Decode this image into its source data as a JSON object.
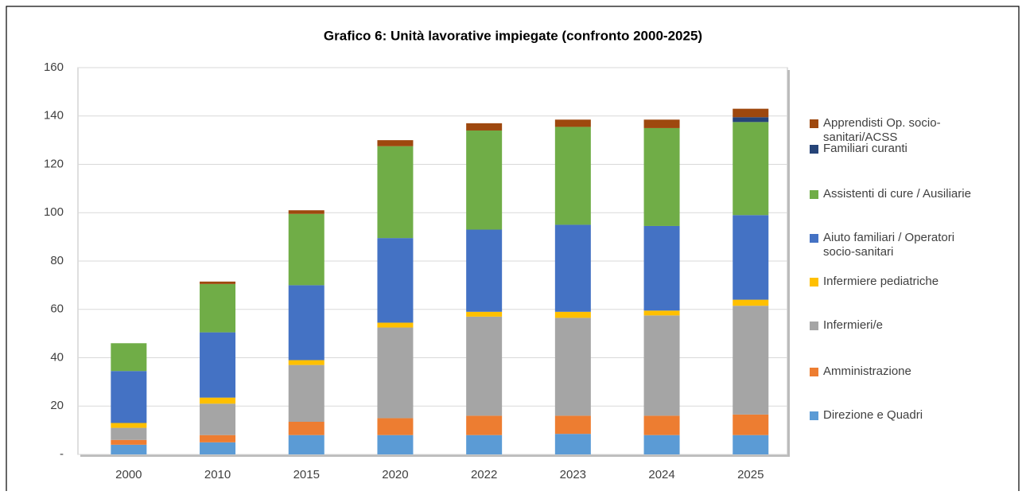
{
  "chart_data": {
    "type": "stacked_bar",
    "title": "Grafico 6:  Unità lavorative impiegate (confronto 2000-2025)",
    "categories": [
      "2000",
      "2010",
      "2015",
      "2020",
      "2022",
      "2023",
      "2024",
      "2025"
    ],
    "series": [
      {
        "name": "Direzione e Quadri",
        "color": "#5b9bd5",
        "values": [
          4,
          5,
          8,
          8,
          8,
          8.5,
          8,
          8
        ]
      },
      {
        "name": "Amministrazione",
        "color": "#ed7d31",
        "values": [
          2,
          3,
          5.5,
          7,
          8,
          7.5,
          8,
          8.5
        ]
      },
      {
        "name": "Infermieri/e",
        "color": "#a5a5a5",
        "values": [
          5,
          13,
          23.5,
          37.5,
          41,
          40.5,
          41.5,
          45
        ]
      },
      {
        "name": "Infermiere pediatriche",
        "color": "#ffc000",
        "values": [
          2,
          2.5,
          2,
          2,
          2,
          2.5,
          2,
          2.5
        ]
      },
      {
        "name": "Aiuto familiari / Operatori socio-sanitari",
        "color": "#4472c4",
        "values": [
          21.5,
          27,
          31,
          35,
          34,
          36,
          35,
          35
        ]
      },
      {
        "name": "Assistenti di cure / Ausiliarie",
        "color": "#70ad47",
        "values": [
          11.5,
          20,
          29.5,
          38,
          41,
          40.5,
          40.5,
          38.5
        ]
      },
      {
        "name": "Familiari curanti",
        "color": "#264478",
        "values": [
          0,
          0,
          0,
          0,
          0,
          0,
          0,
          2
        ]
      },
      {
        "name": "Apprendisti Op. socio-sanitari/ACSS",
        "color": "#9e480e",
        "values": [
          0,
          1,
          1.5,
          2.5,
          3,
          3,
          3.5,
          3.5
        ]
      }
    ],
    "ylim": [
      0,
      160
    ],
    "yticks": [
      {
        "value": 0,
        "label": "-"
      },
      20,
      40,
      60,
      80,
      100,
      120,
      140,
      160
    ],
    "grid": true
  }
}
